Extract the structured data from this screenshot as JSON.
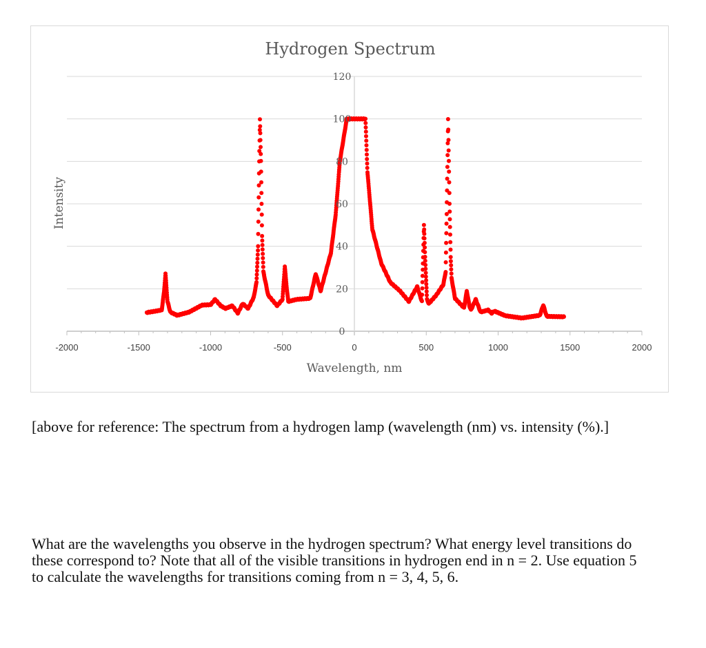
{
  "chart_data": {
    "type": "scatter",
    "title": "Hydrogen Spectrum",
    "xlabel": "Wavelength, nm",
    "ylabel": "Intensity",
    "xlim": [
      -2000,
      2000
    ],
    "ylim": [
      0,
      120
    ],
    "x_ticks": [
      "-2000",
      "-1500",
      "-1000",
      "-500",
      "0",
      "500",
      "1000",
      "1500",
      "2000"
    ],
    "y_ticks": [
      "0",
      "20",
      "40",
      "60",
      "80",
      "100",
      "120"
    ],
    "grid": true,
    "legend": "none",
    "marker_color": "#ff0000",
    "points": [
      [
        -1444,
        8.8
      ],
      [
        -1380,
        9.5
      ],
      [
        -1340,
        10
      ],
      [
        -1325,
        18
      ],
      [
        -1314,
        27
      ],
      [
        -1300,
        14
      ],
      [
        -1280,
        9
      ],
      [
        -1233,
        7.5
      ],
      [
        -1150,
        9
      ],
      [
        -1060,
        12.3
      ],
      [
        -1000,
        12.5
      ],
      [
        -969,
        15
      ],
      [
        -930,
        12
      ],
      [
        -897,
        10.7
      ],
      [
        -849,
        12
      ],
      [
        -811,
        8.5
      ],
      [
        -777,
        13
      ],
      [
        -739,
        10.7
      ],
      [
        -700,
        16
      ],
      [
        -681,
        23
      ],
      [
        -670,
        40
      ],
      [
        -662,
        80
      ],
      [
        -657,
        100
      ],
      [
        -650,
        80
      ],
      [
        -642,
        45
      ],
      [
        -633,
        28
      ],
      [
        -600,
        17
      ],
      [
        -537,
        12
      ],
      [
        -500,
        15
      ],
      [
        -484,
        30.5
      ],
      [
        -470,
        20
      ],
      [
        -460,
        14
      ],
      [
        -400,
        15
      ],
      [
        -307,
        15.5
      ],
      [
        -269,
        27
      ],
      [
        -235,
        19
      ],
      [
        -163,
        37
      ],
      [
        -130,
        55
      ],
      [
        -101,
        80
      ],
      [
        -53,
        100
      ],
      [
        77,
        100
      ],
      [
        91,
        75
      ],
      [
        125,
        48
      ],
      [
        187,
        32
      ],
      [
        250,
        23
      ],
      [
        317,
        19
      ],
      [
        379,
        14
      ],
      [
        437,
        21
      ],
      [
        465,
        15
      ],
      [
        470,
        14
      ],
      [
        478,
        35
      ],
      [
        484,
        50
      ],
      [
        492,
        35
      ],
      [
        505,
        15
      ],
      [
        518,
        13
      ],
      [
        570,
        17
      ],
      [
        619,
        22
      ],
      [
        635,
        28
      ],
      [
        642,
        55
      ],
      [
        652,
        100
      ],
      [
        662,
        60
      ],
      [
        670,
        35
      ],
      [
        676,
        25
      ],
      [
        700,
        15.5
      ],
      [
        763,
        11
      ],
      [
        782,
        19
      ],
      [
        800,
        12
      ],
      [
        811,
        10
      ],
      [
        844,
        15
      ],
      [
        878,
        9
      ],
      [
        931,
        10
      ],
      [
        955,
        8.5
      ],
      [
        974,
        9.5
      ],
      [
        1050,
        7.3
      ],
      [
        1166,
        6.2
      ],
      [
        1290,
        7.5
      ],
      [
        1314,
        12.3
      ],
      [
        1338,
        7
      ],
      [
        1458,
        6.8
      ]
    ]
  },
  "text": {
    "reference": "[above for reference: The spectrum from a hydrogen lamp (wavelength (nm) vs. intensity (%).]",
    "question": "What are the wavelengths you observe in the hydrogen spectrum? What energy level transitions do these correspond to? Note that all of the visible transitions in hydrogen end in n = 2. Use equation 5 to calculate the wavelengths for transitions coming from n = 3, 4, 5, 6."
  }
}
